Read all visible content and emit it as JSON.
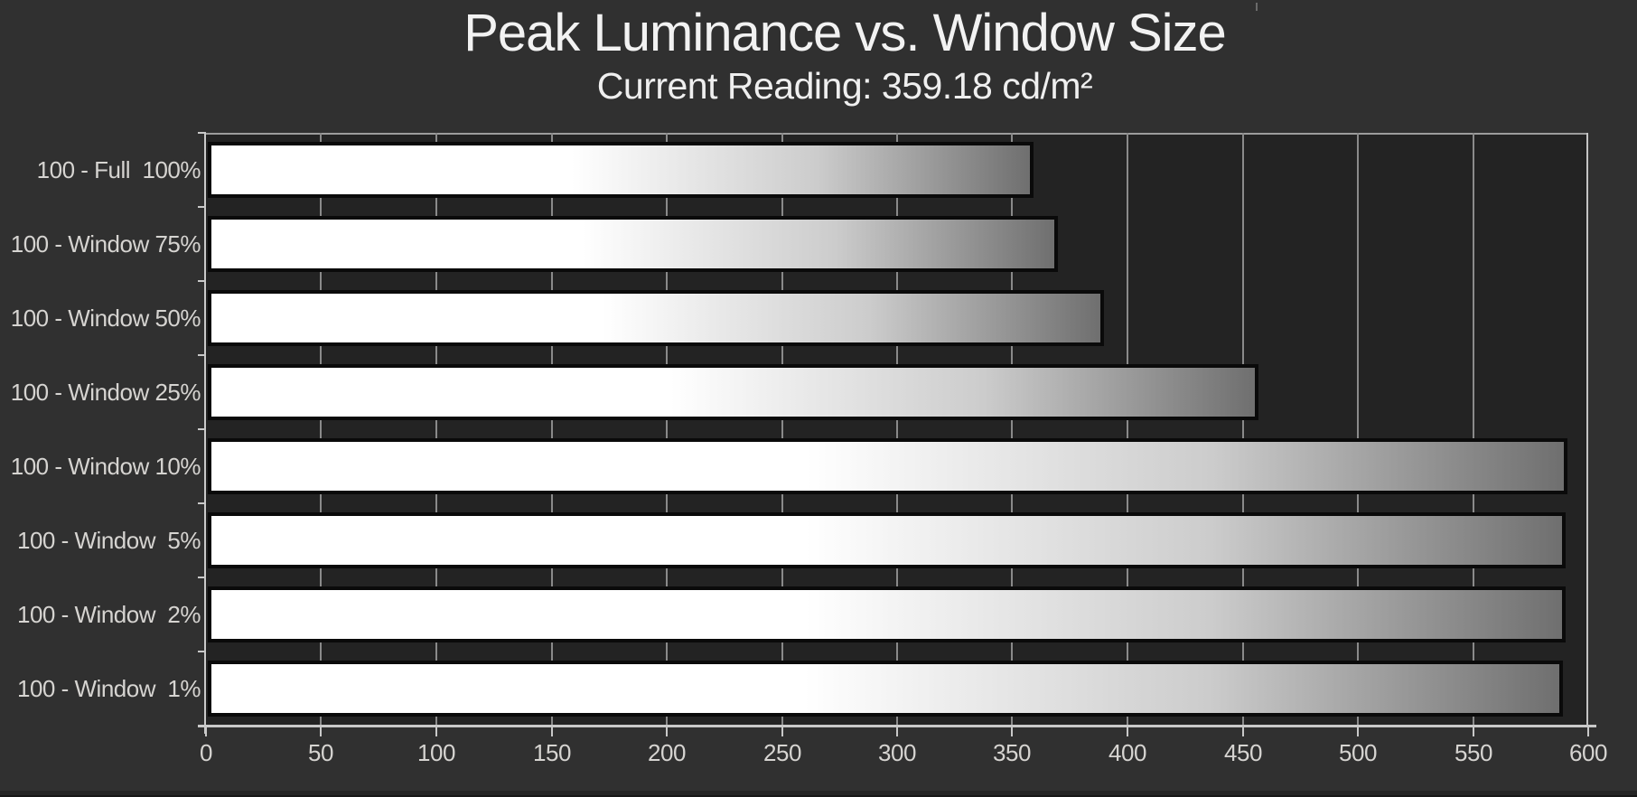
{
  "header": {
    "title": "Peak Luminance vs. Window Size",
    "subtitle": "Current Reading: 359.18 cd/m²"
  },
  "chart_data": {
    "type": "bar",
    "orientation": "horizontal",
    "title": "Peak Luminance vs. Window Size",
    "subtitle": "Current Reading: 359.18 cd/m²",
    "current_reading": 359.18,
    "unit": "cd/m²",
    "categories": [
      "100 - Full  100%",
      "100 - Window 75%",
      "100 - Window 50%",
      "100 - Window 25%",
      "100 - Window 10%",
      "100 - Window  5%",
      "100 - Window  2%",
      "100 - Window  1%"
    ],
    "values": [
      359.18,
      370,
      390,
      457,
      591,
      590,
      590,
      589
    ],
    "xlabel": "",
    "ylabel": "",
    "xlim": [
      0,
      600
    ],
    "x_ticks": [
      0,
      50,
      100,
      150,
      200,
      250,
      300,
      350,
      400,
      450,
      500,
      550,
      600
    ],
    "grid": true,
    "legend": false,
    "colors": {
      "background": "#303030",
      "plot_background": "#232323",
      "gridline": "#8a8a8a",
      "frame": "#9c9c9c",
      "axis": "#c9c9c9",
      "label": "#d6d4d1",
      "title": "#f2f2f2",
      "bar_border": "#0a0a0a",
      "bar_gradient_start": "#ffffff",
      "bar_gradient_end": "#6f6f6f"
    }
  }
}
